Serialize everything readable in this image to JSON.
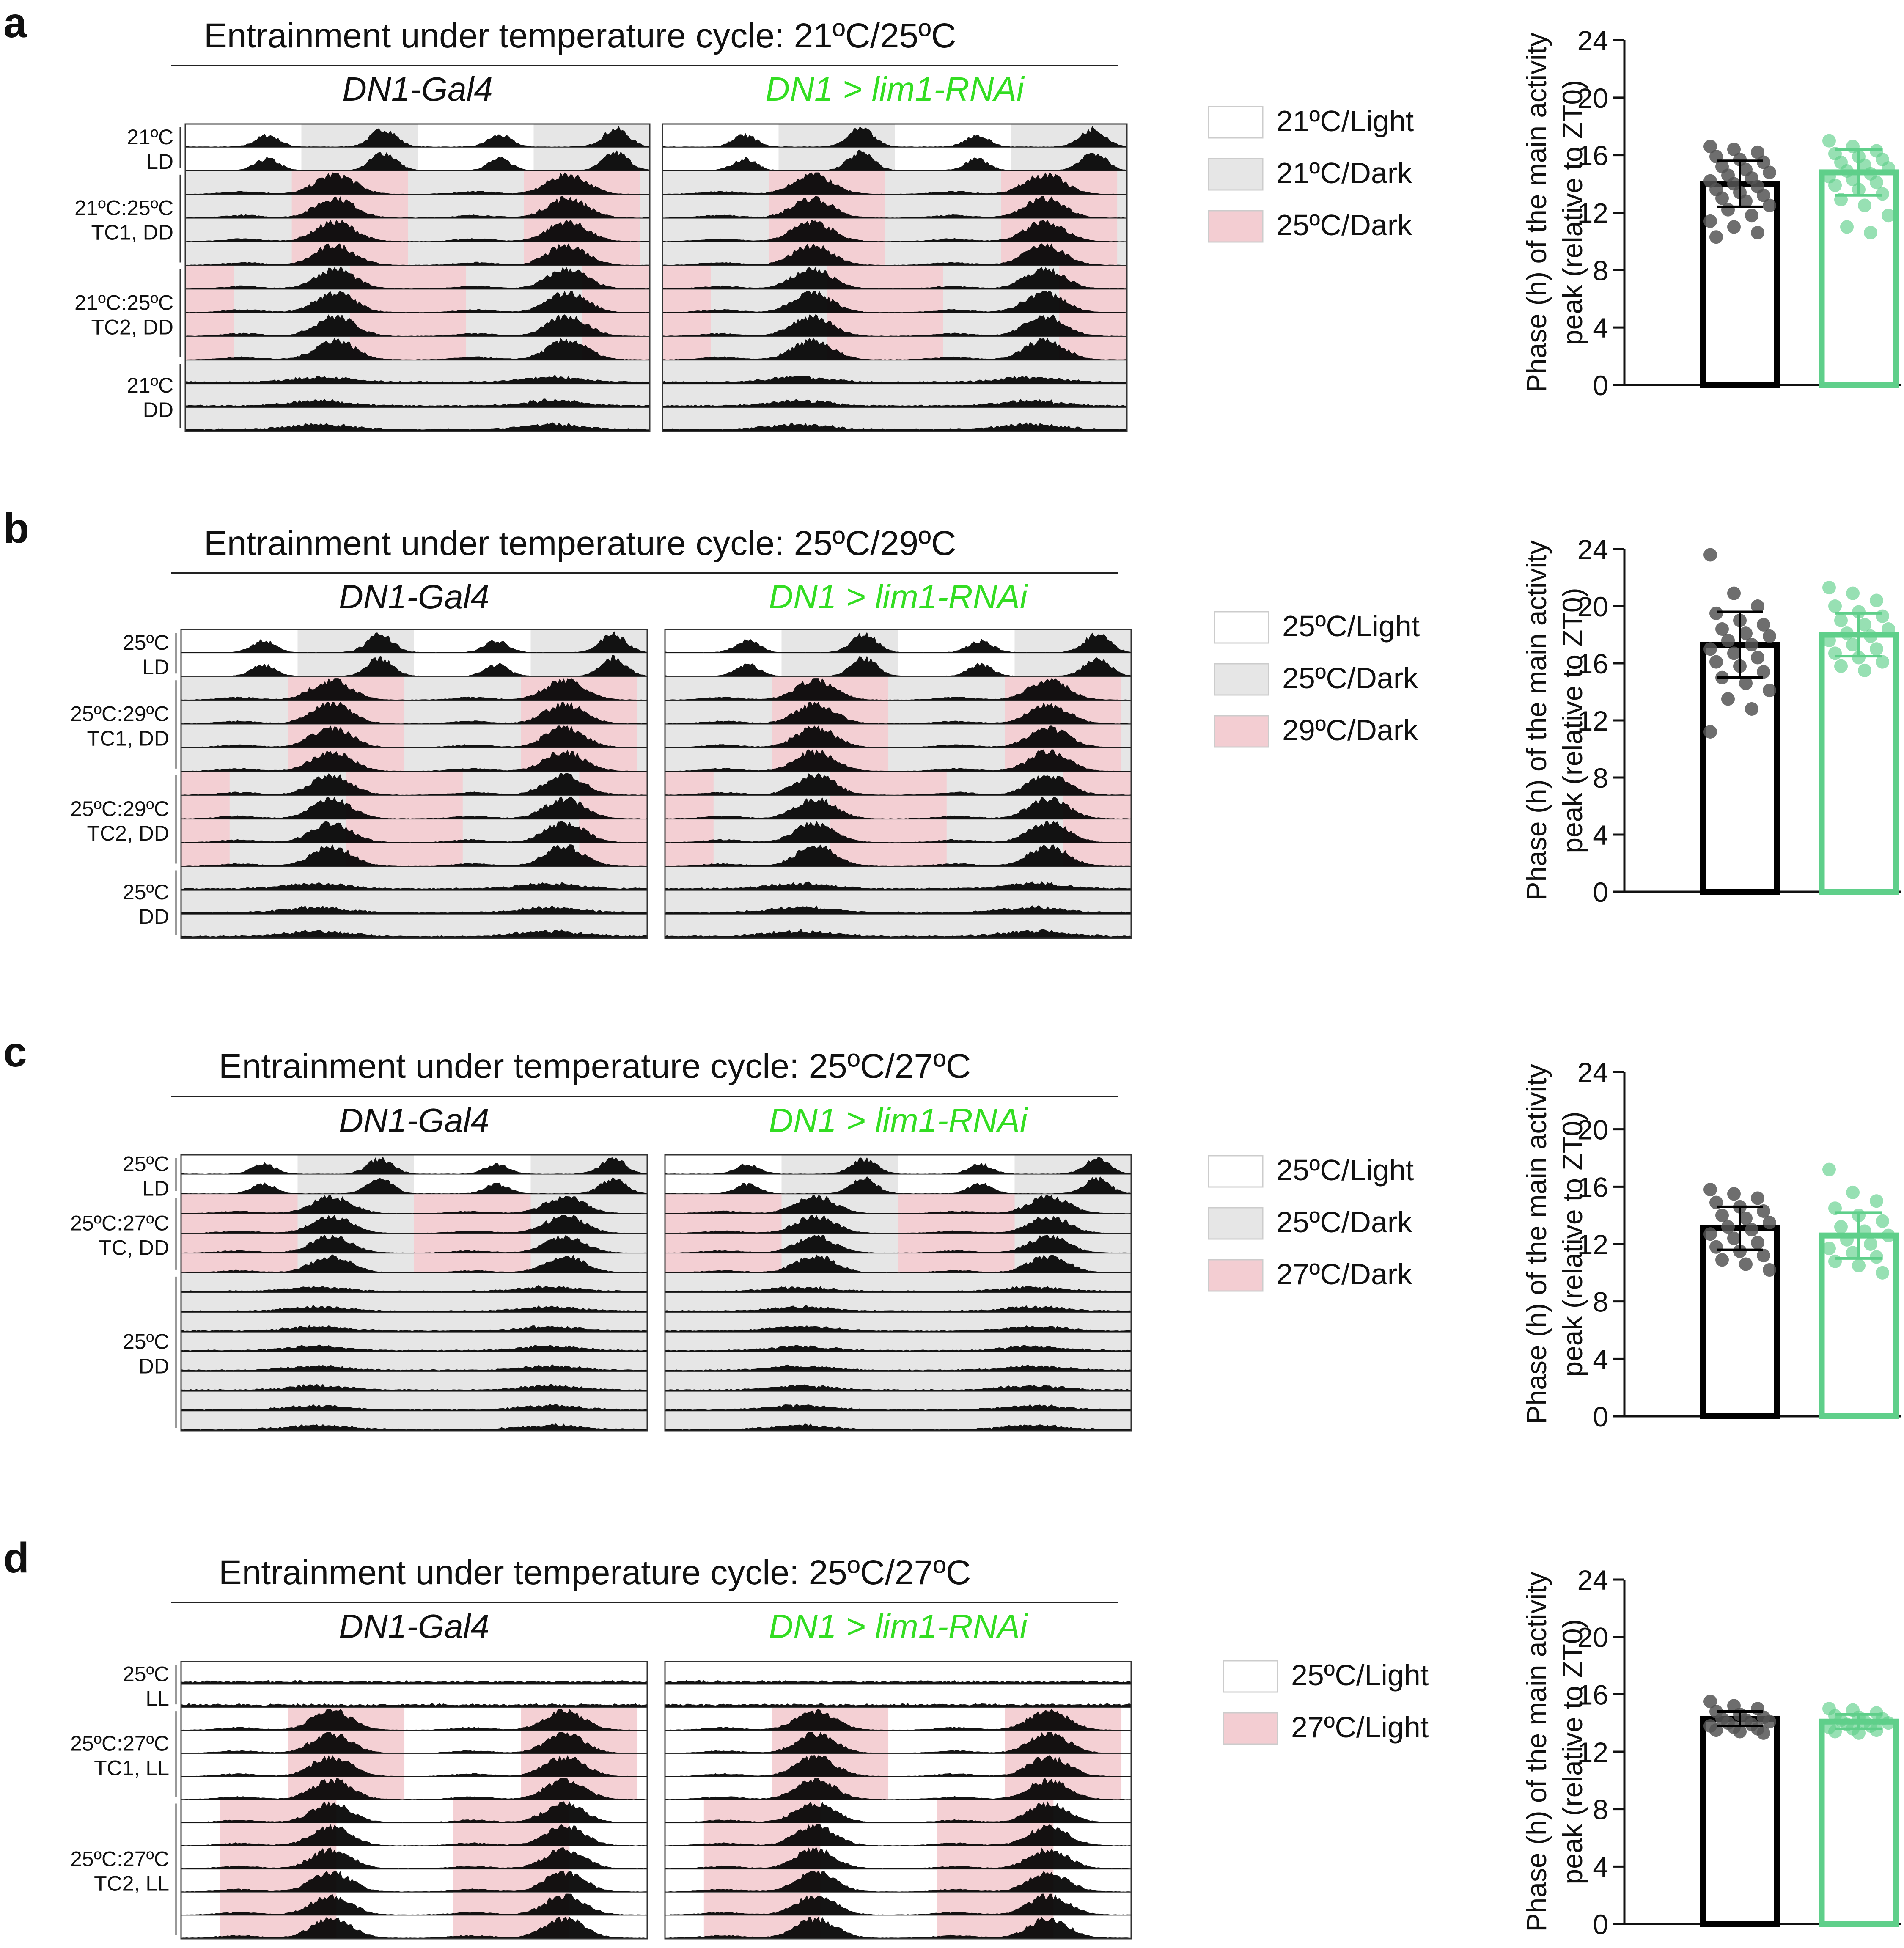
{
  "figure": {
    "panels": [
      {
        "letter": "a",
        "title": "Entrainment under temperature cycle: 21ºC/25ºC",
        "genotypes": [
          "DN1-Gal4",
          "DN1 > lim1-RNAi"
        ],
        "row_groups": [
          {
            "label1": "21ºC",
            "label2": "LD",
            "rows": 2,
            "phase": "LD",
            "pattern": "LD"
          },
          {
            "label1": "21ºC:25ºC",
            "label2": "TC1, DD",
            "rows": 4,
            "phase": "TC1",
            "pattern": "DD"
          },
          {
            "label1": "21ºC:25ºC",
            "label2": "TC2, DD",
            "rows": 4,
            "phase": "TC2",
            "pattern": "DD"
          },
          {
            "label1": "21ºC",
            "label2": "DD",
            "rows": 3,
            "phase": "FREE",
            "pattern": "DD"
          }
        ],
        "legend": [
          {
            "label": "21ºC/Light",
            "color": "#ffffff"
          },
          {
            "label": "21ºC/Dark",
            "color": "#e6e6e6"
          },
          {
            "label": "25ºC/Dark",
            "color": "#f3cdd2"
          }
        ]
      },
      {
        "letter": "b",
        "title": "Entrainment under temperature cycle: 25ºC/29ºC",
        "genotypes": [
          "DN1-Gal4",
          "DN1 > lim1-RNAi"
        ],
        "row_groups": [
          {
            "label1": "25ºC",
            "label2": "LD",
            "rows": 2,
            "phase": "LD",
            "pattern": "LD"
          },
          {
            "label1": "25ºC:29ºC",
            "label2": "TC1, DD",
            "rows": 4,
            "phase": "TC1",
            "pattern": "DD"
          },
          {
            "label1": "25ºC:29ºC",
            "label2": "TC2, DD",
            "rows": 4,
            "phase": "TC2",
            "pattern": "DD"
          },
          {
            "label1": "25ºC",
            "label2": "DD",
            "rows": 3,
            "phase": "FREE",
            "pattern": "DD"
          }
        ],
        "legend": [
          {
            "label": "25ºC/Light",
            "color": "#ffffff"
          },
          {
            "label": "25ºC/Dark",
            "color": "#e6e6e6"
          },
          {
            "label": "29ºC/Dark",
            "color": "#f3cdd2"
          }
        ]
      },
      {
        "letter": "c",
        "title": "Entrainment under temperature cycle: 25ºC/27ºC",
        "genotypes": [
          "DN1-Gal4",
          "DN1 > lim1-RNAi"
        ],
        "row_groups": [
          {
            "label1": "25ºC",
            "label2": "LD",
            "rows": 2,
            "phase": "LD",
            "pattern": "LD"
          },
          {
            "label1": "25ºC:27ºC",
            "label2": "TC, DD",
            "rows": 4,
            "phase": "TC",
            "pattern": "DD"
          },
          {
            "label1": "25ºC",
            "label2": "DD",
            "rows": 8,
            "phase": "FREE",
            "pattern": "DD"
          }
        ],
        "legend": [
          {
            "label": "25ºC/Light",
            "color": "#ffffff"
          },
          {
            "label": "25ºC/Dark",
            "color": "#e6e6e6"
          },
          {
            "label": "27ºC/Dark",
            "color": "#f3cdd2"
          }
        ]
      },
      {
        "letter": "d",
        "title": "Entrainment under temperature cycle: 25ºC/27ºC",
        "genotypes": [
          "DN1-Gal4",
          "DN1 > lim1-RNAi"
        ],
        "row_groups": [
          {
            "label1": "25ºC",
            "label2": "LL",
            "rows": 2,
            "phase": "LL",
            "pattern": "LL"
          },
          {
            "label1": "25ºC:27ºC",
            "label2": "TC1, LL",
            "rows": 4,
            "phase": "TC1",
            "pattern": "LL"
          },
          {
            "label1": "25ºC:27ºC",
            "label2": "TC2, LL",
            "rows": 6,
            "phase": "TC2",
            "pattern": "LL"
          }
        ],
        "legend": [
          {
            "label": "25ºC/Light",
            "color": "#ffffff"
          },
          {
            "label": "27ºC/Light",
            "color": "#f3cdd2"
          }
        ]
      }
    ],
    "colors": {
      "control": "#000000",
      "control_points": "#555555",
      "rnai": "#5fcf8a",
      "rnai_text": "#33dd22",
      "light": "#ffffff",
      "dark": "#e6e6e6",
      "warm": "#f3cdd2",
      "warm_activity": "#5a0f14",
      "activity": "#000000"
    }
  },
  "chart_data": [
    {
      "type": "bar",
      "panel": "a",
      "categories": [
        "DN1-Gal4",
        "DN1 > lim1-RNAi"
      ],
      "values": [
        14.0,
        14.8
      ],
      "error_sd": [
        1.6,
        1.6
      ],
      "ylabel_line1": "Phase (h) of the main activity",
      "ylabel_line2": "peak (relative to ZT0)",
      "ylim": [
        0,
        24
      ],
      "yticks": [
        "0",
        "4",
        "8",
        "12",
        "16",
        "20",
        "24"
      ],
      "points": [
        [
          16.6,
          16.4,
          16.2,
          15.9,
          15.7,
          15.5,
          15.2,
          15.0,
          14.8,
          14.6,
          14.4,
          14.2,
          14.0,
          13.8,
          13.6,
          13.4,
          13.2,
          13.0,
          12.8,
          12.5,
          12.2,
          11.8,
          11.4,
          11.0,
          10.6,
          10.3
        ],
        [
          17.0,
          16.6,
          16.3,
          16.1,
          15.9,
          15.7,
          15.5,
          15.3,
          15.1,
          14.9,
          14.7,
          14.5,
          14.3,
          14.1,
          13.9,
          13.6,
          13.3,
          12.9,
          12.5,
          11.8,
          11.0,
          10.6
        ]
      ]
    },
    {
      "type": "bar",
      "panel": "b",
      "categories": [
        "DN1-Gal4",
        "DN1 > lim1-RNAi"
      ],
      "values": [
        17.3,
        18.0
      ],
      "error_sd": [
        2.3,
        1.5
      ],
      "ylabel_line1": "Phase (h) of the main activity",
      "ylabel_line2": "peak (relative to ZT0)",
      "ylim": [
        0,
        24
      ],
      "yticks": [
        "0",
        "4",
        "8",
        "12",
        "16",
        "20",
        "24"
      ],
      "points": [
        [
          23.6,
          20.9,
          20.0,
          19.5,
          19.0,
          18.7,
          18.4,
          18.1,
          17.9,
          17.6,
          17.3,
          17.0,
          16.7,
          16.4,
          16.1,
          15.8,
          15.4,
          15.0,
          14.6,
          14.1,
          13.5,
          12.8,
          11.2
        ],
        [
          21.3,
          20.9,
          20.4,
          20.0,
          19.6,
          19.3,
          19.0,
          18.7,
          18.4,
          18.1,
          17.9,
          17.6,
          17.3,
          17.0,
          16.7,
          16.4,
          16.1,
          15.8,
          15.5
        ]
      ]
    },
    {
      "type": "bar",
      "panel": "c",
      "categories": [
        "DN1-Gal4",
        "DN1 > lim1-RNAi"
      ],
      "values": [
        13.1,
        12.6
      ],
      "error_sd": [
        1.5,
        1.6
      ],
      "ylabel_line1": "Phase (h) of the main activity",
      "ylabel_line2": "peak (relative to ZT0)",
      "ylim": [
        0,
        24
      ],
      "yticks": [
        "0",
        "4",
        "8",
        "12",
        "16",
        "20",
        "24"
      ],
      "points": [
        [
          15.8,
          15.5,
          15.2,
          14.9,
          14.6,
          14.3,
          14.0,
          13.8,
          13.5,
          13.2,
          13.0,
          12.7,
          12.4,
          12.1,
          11.8,
          11.5,
          11.2,
          10.9,
          10.6,
          10.2
        ],
        [
          17.2,
          15.6,
          15.0,
          14.5,
          14.0,
          13.6,
          13.2,
          12.9,
          12.6,
          12.3,
          12.0,
          11.7,
          11.4,
          11.1,
          10.8,
          10.5,
          10.0
        ]
      ]
    },
    {
      "type": "bar",
      "panel": "d",
      "categories": [
        "DN1-Gal4",
        "DN1 > lim1-RNAi"
      ],
      "values": [
        14.3,
        14.1
      ],
      "error_sd": [
        0.5,
        0.5
      ],
      "ylabel_line1": "Phase (h) of the main activity",
      "ylabel_line2": "peak (relative to ZT0)",
      "ylim": [
        0,
        24
      ],
      "yticks": [
        "0",
        "4",
        "8",
        "12",
        "16",
        "20",
        "24"
      ],
      "points": [
        [
          15.5,
          15.2,
          15.0,
          14.8,
          14.6,
          14.4,
          14.3,
          14.2,
          14.1,
          14.0,
          13.9,
          13.8,
          13.7,
          13.6,
          13.5,
          13.4,
          13.3
        ],
        [
          15.0,
          14.9,
          14.7,
          14.5,
          14.4,
          14.3,
          14.2,
          14.1,
          14.0,
          13.9,
          13.8,
          13.7,
          13.6,
          13.5,
          13.4,
          13.3
        ]
      ]
    }
  ]
}
